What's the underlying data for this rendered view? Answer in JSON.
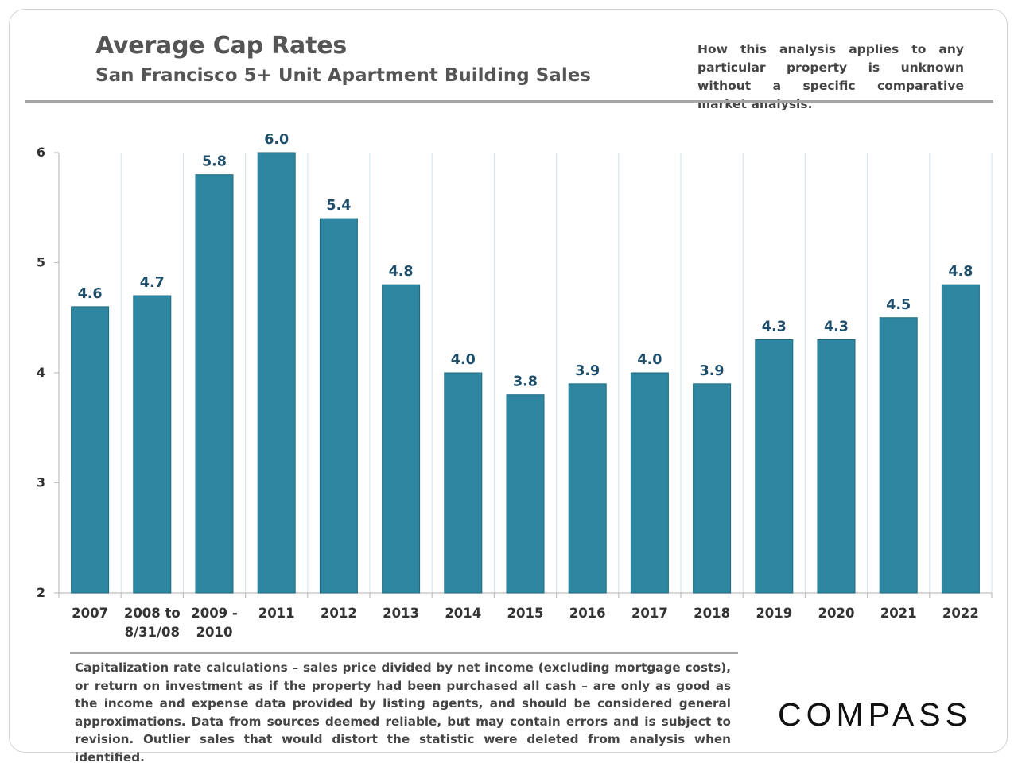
{
  "header": {
    "title": "Average Cap Rates",
    "subtitle": "San Francisco 5+ Unit Apartment Building Sales",
    "disclaimer": "How this analysis applies to any particular property is unknown without a specific comparative market analysis."
  },
  "footer": {
    "footnote": "Capitalization rate calculations – sales price divided by net income (excluding mortgage costs), or return on investment as if the property had been purchased all cash – are only as good as the income and expense data provided by listing agents, and should be considered general approximations. Data from sources deemed reliable, but may contain errors and is subject to revision. Outlier sales that would distort the statistic were deleted from analysis when identified.",
    "logo_text": "COMPASS"
  },
  "colors": {
    "bar": "#2e86a0",
    "bar_stroke": "#1f6a80",
    "label": "#1f4e6b",
    "grid": "#cde4ec",
    "axis": "#bfbfbf",
    "tick_text": "#333333"
  },
  "chart_data": {
    "type": "bar",
    "title": "Average Cap Rates",
    "subtitle": "San Francisco 5+ Unit Apartment Building Sales",
    "xlabel": "",
    "ylabel": "",
    "categories": [
      [
        "2007"
      ],
      [
        "2008 to",
        "8/31/08"
      ],
      [
        "2009 -",
        "2010"
      ],
      [
        "2011"
      ],
      [
        "2012"
      ],
      [
        "2013"
      ],
      [
        "2014"
      ],
      [
        "2015"
      ],
      [
        "2016"
      ],
      [
        "2017"
      ],
      [
        "2018"
      ],
      [
        "2019"
      ],
      [
        "2020"
      ],
      [
        "2021"
      ],
      [
        "2022"
      ]
    ],
    "values": [
      4.6,
      4.7,
      5.8,
      6.0,
      5.4,
      4.8,
      4.0,
      3.8,
      3.9,
      4.0,
      3.9,
      4.3,
      4.3,
      4.5,
      4.8
    ],
    "value_labels": [
      "4.6",
      "4.7",
      "5.8",
      "6.0",
      "5.4",
      "4.8",
      "4.0",
      "3.8",
      "3.9",
      "4.0",
      "3.9",
      "4.3",
      "4.3",
      "4.5",
      "4.8"
    ],
    "ylim": [
      2,
      6
    ],
    "yticks": [
      2,
      3,
      4,
      5,
      6
    ],
    "grid": "vertical category separators",
    "legend": "none"
  }
}
